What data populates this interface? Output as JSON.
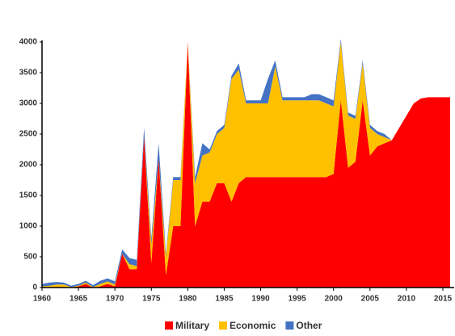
{
  "chart_data": {
    "type": "stacked_area",
    "x": [
      1960,
      1961,
      1962,
      1963,
      1964,
      1965,
      1966,
      1967,
      1968,
      1969,
      1970,
      1971,
      1972,
      1973,
      1974,
      1975,
      1976,
      1977,
      1978,
      1979,
      1980,
      1981,
      1982,
      1983,
      1984,
      1985,
      1986,
      1987,
      1988,
      1989,
      1990,
      1991,
      1992,
      1993,
      1994,
      1995,
      1996,
      1997,
      1998,
      1999,
      2000,
      2001,
      2002,
      2003,
      2004,
      2005,
      2006,
      2007,
      2008,
      2009,
      2010,
      2011,
      2012,
      2013,
      2014,
      2015,
      2016
    ],
    "series": [
      {
        "name": "Military",
        "color": "#ff0000",
        "values": [
          0,
          0,
          10,
          10,
          0,
          20,
          60,
          0,
          20,
          60,
          20,
          550,
          300,
          300,
          2450,
          400,
          2100,
          200,
          1000,
          1000,
          4000,
          1000,
          1400,
          1400,
          1700,
          1700,
          1400,
          1700,
          1800,
          1800,
          1800,
          1800,
          1800,
          1800,
          1800,
          1800,
          1800,
          1800,
          1800,
          1800,
          1850,
          3050,
          1950,
          2050,
          3050,
          2150,
          2300,
          2350,
          2400,
          2600,
          2800,
          3000,
          3080,
          3100,
          3100,
          3100,
          3100
        ]
      },
      {
        "name": "Economic",
        "color": "#ffc000",
        "values": [
          20,
          30,
          40,
          40,
          10,
          10,
          20,
          10,
          40,
          40,
          30,
          0,
          80,
          50,
          0,
          300,
          0,
          300,
          750,
          750,
          0,
          700,
          750,
          800,
          800,
          900,
          2000,
          1850,
          1200,
          1200,
          1200,
          1200,
          1800,
          1250,
          1250,
          1250,
          1250,
          1250,
          1250,
          1200,
          1100,
          950,
          850,
          700,
          600,
          450,
          200,
          100,
          0,
          0,
          0,
          0,
          0,
          0,
          0,
          0,
          0
        ]
      },
      {
        "name": "Other",
        "color": "#4472c4",
        "values": [
          40,
          50,
          40,
          30,
          20,
          30,
          30,
          30,
          50,
          50,
          50,
          70,
          100,
          100,
          150,
          100,
          250,
          50,
          50,
          50,
          0,
          100,
          200,
          50,
          50,
          50,
          50,
          100,
          50,
          50,
          50,
          400,
          100,
          50,
          50,
          50,
          50,
          100,
          100,
          100,
          100,
          50,
          50,
          50,
          50,
          50,
          50,
          50,
          0,
          0,
          0,
          0,
          0,
          0,
          0,
          0,
          0
        ]
      }
    ],
    "xlim": [
      1960,
      2016
    ],
    "xticks": [
      1960,
      1965,
      1970,
      1975,
      1980,
      1985,
      1990,
      1995,
      2000,
      2005,
      2010,
      2015
    ],
    "ylim": [
      0,
      4000
    ],
    "yticks": [
      0,
      500,
      1000,
      1500,
      2000,
      2500,
      3000,
      3500,
      4000
    ],
    "legend": "bottom"
  }
}
